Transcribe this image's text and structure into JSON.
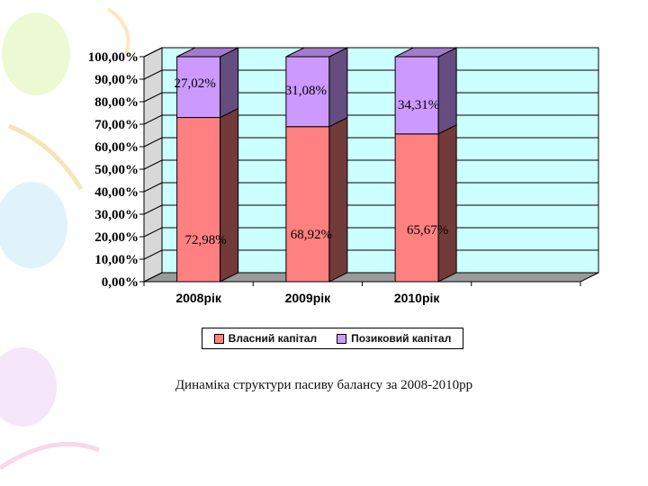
{
  "chart_data": {
    "type": "bar",
    "stacked": true,
    "three_d": true,
    "categories": [
      "2008рік",
      "2009рік",
      "2010рік"
    ],
    "series": [
      {
        "name": "Власний капітал",
        "values": [
          72.98,
          68.92,
          65.67
        ],
        "labels": [
          "72,98%",
          "68,92%",
          "65,67%"
        ],
        "color": "#FF8080"
      },
      {
        "name": "Позиковий капітал",
        "values": [
          27.02,
          31.08,
          34.31
        ],
        "labels": [
          "27,02%",
          "31,08%",
          "34,31%"
        ],
        "color": "#CC99FF"
      }
    ],
    "yticks": [
      "0,00%",
      "10,00%",
      "20,00%",
      "30,00%",
      "40,00%",
      "50,00%",
      "60,00%",
      "70,00%",
      "80,00%",
      "90,00%",
      "100,00%"
    ],
    "ylim": [
      0,
      100
    ],
    "grid": true,
    "plot_background": "#CCFFFF",
    "legend_position": "bottom"
  },
  "caption": "Динаміка структури пасиву балансу за 2008-2010рр"
}
